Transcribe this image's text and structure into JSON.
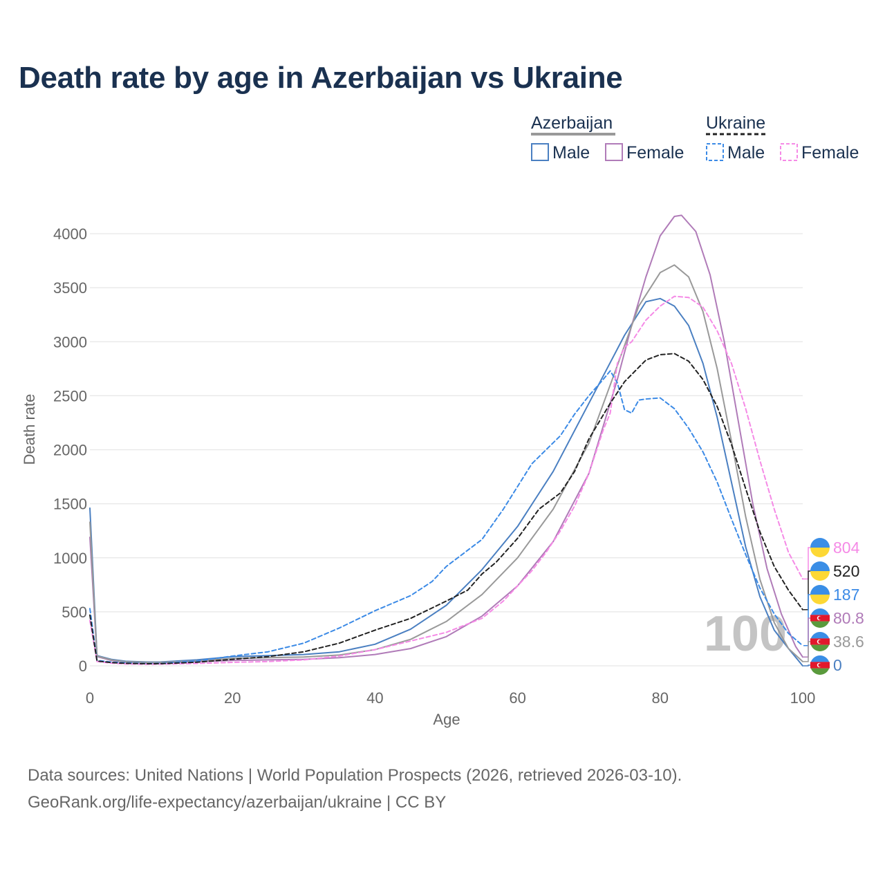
{
  "title": "Death rate by age in Azerbaijan vs Ukraine",
  "legend": {
    "group1": "Azerbaijan",
    "group2": "Ukraine",
    "male": "Male",
    "female": "Female"
  },
  "watermark_age": "100",
  "source_line1": "Data sources: United Nations | World Population Prospects (2026, retrieved 2026-03-10).",
  "source_line2": "GeoRank.org/life-expectancy/azerbaijan/ukraine | CC BY",
  "colors": {
    "az_male": "#4a7fc1",
    "az_female": "#b07bb8",
    "az_total": "#999999",
    "ua_male": "#3b8ae6",
    "ua_female": "#f58ae6",
    "ua_total": "#222222",
    "title": "#1a3150",
    "flag_blue": "#3a8ee6",
    "flag_yellow": "#fdd835",
    "flag_az_blue": "#3a8ee6",
    "flag_az_red": "#e2182c",
    "flag_az_green": "#5a9a3c"
  },
  "chart_data": {
    "type": "line",
    "title": "Death rate by age in Azerbaijan vs Ukraine",
    "xlabel": "Age",
    "ylabel": "Death rate",
    "xlim": [
      0,
      100
    ],
    "ylim": [
      0,
      4000
    ],
    "xticks": [
      0,
      20,
      40,
      60,
      80,
      100
    ],
    "yticks": [
      0,
      500,
      1000,
      1500,
      2000,
      2500,
      3000,
      3500,
      4000
    ],
    "grid": true,
    "series": [
      {
        "name": "Azerbaijan Male",
        "key": "az_male",
        "country": "Azerbaijan",
        "dashed": false,
        "end_label": "0",
        "flag": "az",
        "points": [
          [
            0,
            1460
          ],
          [
            1,
            95
          ],
          [
            3,
            60
          ],
          [
            5,
            42
          ],
          [
            8,
            35
          ],
          [
            10,
            36
          ],
          [
            15,
            55
          ],
          [
            20,
            85
          ],
          [
            25,
            95
          ],
          [
            30,
            105
          ],
          [
            35,
            130
          ],
          [
            40,
            200
          ],
          [
            45,
            340
          ],
          [
            50,
            560
          ],
          [
            55,
            890
          ],
          [
            60,
            1290
          ],
          [
            65,
            1800
          ],
          [
            70,
            2430
          ],
          [
            75,
            3060
          ],
          [
            78,
            3370
          ],
          [
            80,
            3400
          ],
          [
            82,
            3330
          ],
          [
            84,
            3150
          ],
          [
            86,
            2800
          ],
          [
            88,
            2300
          ],
          [
            90,
            1700
          ],
          [
            92,
            1100
          ],
          [
            94,
            640
          ],
          [
            96,
            330
          ],
          [
            98,
            160
          ],
          [
            99,
            80
          ],
          [
            100,
            0
          ]
        ]
      },
      {
        "name": "Azerbaijan Female",
        "key": "az_female",
        "country": "Azerbaijan",
        "dashed": false,
        "end_label": "80.8",
        "flag": "az",
        "points": [
          [
            0,
            1190
          ],
          [
            1,
            85
          ],
          [
            3,
            50
          ],
          [
            5,
            35
          ],
          [
            8,
            28
          ],
          [
            10,
            28
          ],
          [
            15,
            38
          ],
          [
            20,
            50
          ],
          [
            25,
            55
          ],
          [
            30,
            60
          ],
          [
            35,
            75
          ],
          [
            40,
            105
          ],
          [
            45,
            160
          ],
          [
            50,
            270
          ],
          [
            55,
            460
          ],
          [
            60,
            740
          ],
          [
            65,
            1150
          ],
          [
            70,
            1780
          ],
          [
            74,
            2650
          ],
          [
            76,
            3150
          ],
          [
            78,
            3600
          ],
          [
            80,
            3980
          ],
          [
            82,
            4160
          ],
          [
            83,
            4170
          ],
          [
            85,
            4020
          ],
          [
            87,
            3620
          ],
          [
            89,
            3000
          ],
          [
            91,
            2250
          ],
          [
            93,
            1500
          ],
          [
            95,
            900
          ],
          [
            97,
            480
          ],
          [
            99,
            180
          ],
          [
            100,
            81
          ]
        ]
      },
      {
        "name": "Azerbaijan Total",
        "key": "az_total",
        "country": "Azerbaijan",
        "dashed": false,
        "end_label": "38.6",
        "flag": "az",
        "points": [
          [
            0,
            1330
          ],
          [
            1,
            90
          ],
          [
            3,
            55
          ],
          [
            5,
            38
          ],
          [
            8,
            32
          ],
          [
            10,
            32
          ],
          [
            15,
            46
          ],
          [
            20,
            68
          ],
          [
            25,
            75
          ],
          [
            30,
            82
          ],
          [
            35,
            100
          ],
          [
            40,
            150
          ],
          [
            45,
            245
          ],
          [
            50,
            410
          ],
          [
            55,
            660
          ],
          [
            60,
            1000
          ],
          [
            65,
            1450
          ],
          [
            70,
            2060
          ],
          [
            74,
            2780
          ],
          [
            77,
            3330
          ],
          [
            80,
            3640
          ],
          [
            82,
            3710
          ],
          [
            84,
            3600
          ],
          [
            86,
            3280
          ],
          [
            88,
            2750
          ],
          [
            90,
            2080
          ],
          [
            92,
            1380
          ],
          [
            94,
            800
          ],
          [
            96,
            400
          ],
          [
            98,
            160
          ],
          [
            100,
            39
          ]
        ]
      },
      {
        "name": "Ukraine Male",
        "key": "ua_male",
        "country": "Ukraine",
        "dashed": true,
        "end_label": "187",
        "flag": "ua",
        "points": [
          [
            0,
            530
          ],
          [
            1,
            50
          ],
          [
            3,
            35
          ],
          [
            5,
            28
          ],
          [
            8,
            22
          ],
          [
            10,
            24
          ],
          [
            15,
            45
          ],
          [
            20,
            90
          ],
          [
            25,
            130
          ],
          [
            30,
            210
          ],
          [
            35,
            350
          ],
          [
            40,
            510
          ],
          [
            45,
            650
          ],
          [
            48,
            780
          ],
          [
            50,
            920
          ],
          [
            55,
            1170
          ],
          [
            58,
            1450
          ],
          [
            60,
            1660
          ],
          [
            62,
            1870
          ],
          [
            64,
            2000
          ],
          [
            66,
            2130
          ],
          [
            68,
            2330
          ],
          [
            70,
            2500
          ],
          [
            72,
            2650
          ],
          [
            73,
            2730
          ],
          [
            74,
            2620
          ],
          [
            75,
            2370
          ],
          [
            76,
            2340
          ],
          [
            77,
            2460
          ],
          [
            78,
            2470
          ],
          [
            80,
            2480
          ],
          [
            82,
            2380
          ],
          [
            84,
            2200
          ],
          [
            86,
            1980
          ],
          [
            88,
            1700
          ],
          [
            90,
            1360
          ],
          [
            92,
            1030
          ],
          [
            94,
            720
          ],
          [
            96,
            480
          ],
          [
            98,
            300
          ],
          [
            100,
            187
          ]
        ]
      },
      {
        "name": "Ukraine Female",
        "key": "ua_female",
        "country": "Ukraine",
        "dashed": true,
        "end_label": "804",
        "flag": "ua",
        "points": [
          [
            0,
            420
          ],
          [
            1,
            40
          ],
          [
            3,
            25
          ],
          [
            5,
            18
          ],
          [
            8,
            15
          ],
          [
            10,
            16
          ],
          [
            15,
            22
          ],
          [
            20,
            32
          ],
          [
            25,
            40
          ],
          [
            30,
            55
          ],
          [
            35,
            90
          ],
          [
            40,
            150
          ],
          [
            45,
            230
          ],
          [
            50,
            310
          ],
          [
            55,
            440
          ],
          [
            58,
            600
          ],
          [
            60,
            740
          ],
          [
            62,
            880
          ],
          [
            64,
            1050
          ],
          [
            66,
            1250
          ],
          [
            68,
            1480
          ],
          [
            70,
            1780
          ],
          [
            72,
            2180
          ],
          [
            73,
            2340
          ],
          [
            74,
            2800
          ],
          [
            75,
            2950
          ],
          [
            76,
            3000
          ],
          [
            77,
            3100
          ],
          [
            78,
            3200
          ],
          [
            80,
            3330
          ],
          [
            82,
            3420
          ],
          [
            84,
            3410
          ],
          [
            86,
            3320
          ],
          [
            88,
            3100
          ],
          [
            90,
            2800
          ],
          [
            92,
            2380
          ],
          [
            94,
            1900
          ],
          [
            96,
            1450
          ],
          [
            98,
            1050
          ],
          [
            100,
            804
          ]
        ]
      },
      {
        "name": "Ukraine Total",
        "key": "ua_total",
        "country": "Ukraine",
        "dashed": true,
        "end_label": "520",
        "flag": "ua",
        "points": [
          [
            0,
            470
          ],
          [
            1,
            45
          ],
          [
            3,
            30
          ],
          [
            5,
            23
          ],
          [
            8,
            19
          ],
          [
            10,
            20
          ],
          [
            15,
            33
          ],
          [
            20,
            60
          ],
          [
            25,
            85
          ],
          [
            30,
            130
          ],
          [
            35,
            210
          ],
          [
            40,
            330
          ],
          [
            45,
            440
          ],
          [
            50,
            600
          ],
          [
            53,
            700
          ],
          [
            55,
            850
          ],
          [
            57,
            960
          ],
          [
            60,
            1180
          ],
          [
            63,
            1450
          ],
          [
            66,
            1600
          ],
          [
            68,
            1800
          ],
          [
            70,
            2100
          ],
          [
            73,
            2430
          ],
          [
            75,
            2630
          ],
          [
            78,
            2830
          ],
          [
            80,
            2880
          ],
          [
            82,
            2890
          ],
          [
            84,
            2820
          ],
          [
            86,
            2650
          ],
          [
            88,
            2400
          ],
          [
            90,
            2050
          ],
          [
            92,
            1640
          ],
          [
            94,
            1240
          ],
          [
            96,
            920
          ],
          [
            98,
            700
          ],
          [
            100,
            520
          ]
        ]
      }
    ]
  }
}
